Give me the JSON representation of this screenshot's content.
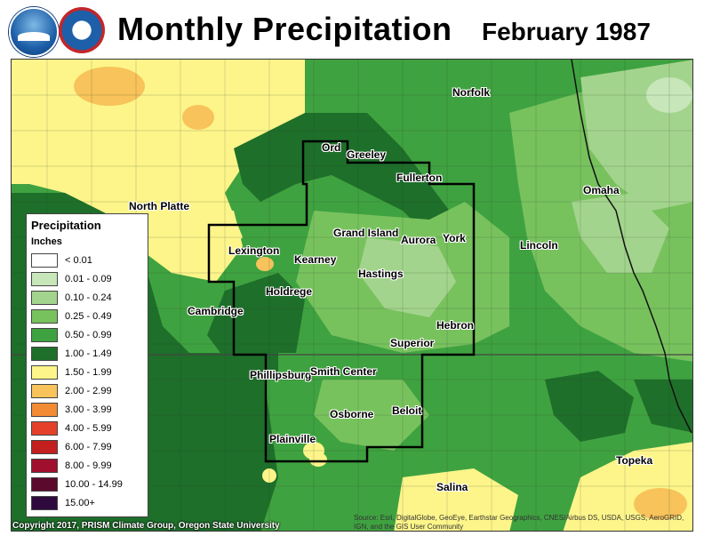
{
  "header": {
    "title": "Monthly Precipitation",
    "date": "February 1987",
    "logos": {
      "noaa": "NOAA",
      "nws": "NATIONAL WEATHER SERVICE"
    }
  },
  "legend": {
    "title": "Precipitation",
    "units": "Inches",
    "classes": [
      {
        "label": "< 0.01",
        "color": "#ffffff"
      },
      {
        "label": "0.01 - 0.09",
        "color": "#c7e6b9"
      },
      {
        "label": "0.10 - 0.24",
        "color": "#a3d48d"
      },
      {
        "label": "0.25 - 0.49",
        "color": "#78c25e"
      },
      {
        "label": "0.50 - 0.99",
        "color": "#3fa240"
      },
      {
        "label": "1.00 - 1.49",
        "color": "#1e6f2a"
      },
      {
        "label": "1.50 - 1.99",
        "color": "#fdf58a"
      },
      {
        "label": "2.00 - 2.99",
        "color": "#f7c35a"
      },
      {
        "label": "3.00 - 3.99",
        "color": "#f28b33"
      },
      {
        "label": "4.00 - 5.99",
        "color": "#e5412a"
      },
      {
        "label": "6.00 - 7.99",
        "color": "#c41f1f"
      },
      {
        "label": "8.00 - 9.99",
        "color": "#a0102e"
      },
      {
        "label": "10.00 - 14.99",
        "color": "#5b0a2d"
      },
      {
        "label": "15.00+",
        "color": "#2e0a3f"
      }
    ]
  },
  "cities": {
    "norfolk": "Norfolk",
    "ord": "Ord",
    "greeley": "Greeley",
    "fullerton": "Fullerton",
    "omaha": "Omaha",
    "north_platte": "North Platte",
    "grand_island": "Grand Island",
    "aurora": "Aurora",
    "york": "York",
    "lexington": "Lexington",
    "kearney": "Kearney",
    "lincoln": "Lincoln",
    "hastings": "Hastings",
    "holdrege": "Holdrege",
    "cambridge": "Cambridge",
    "hebron": "Hebron",
    "superior": "Superior",
    "phillipsburg": "Phillipsburg",
    "smith_center": "Smith Center",
    "osborne": "Osborne",
    "beloit": "Beloit",
    "plainville": "Plainville",
    "topeka": "Topeka",
    "salina": "Salina"
  },
  "footer": {
    "copyright": "Copyright 2017, PRISM Climate Group, Oregon State University",
    "source": "Source: Esri, DigitalGlobe, GeoEye, Earthstar Geographics, CNES/Airbus DS, USDA, USGS, AeroGRID, IGN, and the GIS User Community"
  }
}
